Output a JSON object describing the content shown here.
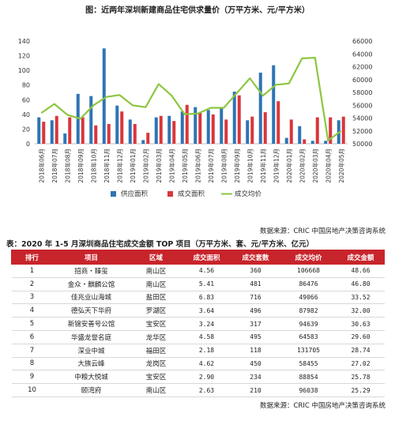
{
  "chart_data": {
    "type": "bar+line",
    "title": "图：近两年深圳新建商品住宅供求量价（万平方米、元/平方米）",
    "categories": [
      "2018年06月",
      "2018年07月",
      "2018年08月",
      "2018年09月",
      "2018年10月",
      "2018年11月",
      "2018年12月",
      "2019年01月",
      "2019年02月",
      "2019年03月",
      "2019年04月",
      "2019年05月",
      "2019年06月",
      "2019年07月",
      "2019年08月",
      "2019年09月",
      "2019年10月",
      "2019年11月",
      "2019年12月",
      "2020年01月",
      "2020年02月",
      "2020年03月",
      "2020年04月",
      "2020年05月"
    ],
    "left_axis": {
      "min": 0,
      "max": 140,
      "ticks": [
        0,
        20,
        40,
        60,
        80,
        100,
        120,
        140
      ]
    },
    "right_axis": {
      "min": 50000,
      "max": 66000,
      "ticks": [
        50000,
        52000,
        54000,
        56000,
        58000,
        60000,
        62000,
        64000,
        66000
      ]
    },
    "series": [
      {
        "name": "供应面积",
        "type": "bar",
        "axis": "left",
        "color": "#2e74b5",
        "values": [
          36,
          32,
          14,
          68,
          65,
          130,
          52,
          33,
          5,
          36,
          38,
          44,
          50,
          46,
          48,
          71,
          32,
          97,
          107,
          8,
          24,
          4,
          4,
          32
        ]
      },
      {
        "name": "成交面积",
        "type": "bar",
        "axis": "left",
        "color": "#d9363b",
        "values": [
          30,
          38,
          36,
          36,
          25,
          27,
          44,
          27,
          15,
          38,
          31,
          53,
          42,
          40,
          33,
          66,
          37,
          43,
          58,
          33,
          6,
          36,
          36,
          37
        ]
      },
      {
        "name": "成交均价",
        "type": "line",
        "axis": "right",
        "color": "#8dc63f",
        "values": [
          54800,
          56200,
          54500,
          53900,
          56000,
          57300,
          57600,
          56000,
          55700,
          59300,
          57500,
          54600,
          54700,
          55600,
          55600,
          57900,
          60200,
          57500,
          59200,
          59400,
          63300,
          63400,
          50500,
          52000
        ]
      }
    ],
    "legend": [
      "供应面积",
      "成交面积",
      "成交均价"
    ],
    "legend_position": "bottom",
    "grid": false
  },
  "source_note_chart": "数据来源：CRIC 中国房地产决策咨询系统",
  "table": {
    "title": "表：2020 年 1-5 月深圳商品住宅成交金额 TOP 项目（万平方米、套、元/平方米、亿元）",
    "headers": [
      "排行",
      "项目",
      "区域",
      "成交面积",
      "成交套数",
      "成交均价",
      "成交金额"
    ],
    "rows": [
      [
        "1",
        "招商・臻玺",
        "南山区",
        "4.56",
        "360",
        "106668",
        "48.66"
      ],
      [
        "2",
        "金众・麒麟公馆",
        "南山区",
        "5.41",
        "481",
        "86476",
        "46.80"
      ],
      [
        "3",
        "佳兆业山海城",
        "盐田区",
        "6.83",
        "716",
        "49066",
        "33.52"
      ],
      [
        "4",
        "德弘天下华府",
        "罗湖区",
        "3.64",
        "496",
        "87982",
        "32.00"
      ],
      [
        "5",
        "新锦安善号公馆",
        "宝安区",
        "3.24",
        "317",
        "94639",
        "30.63"
      ],
      [
        "6",
        "华盛龙誉名庭",
        "龙华区",
        "4.58",
        "495",
        "64583",
        "29.60"
      ],
      [
        "7",
        "深业中城",
        "福田区",
        "2.18",
        "118",
        "131705",
        "28.74"
      ],
      [
        "8",
        "大族云峰",
        "龙岗区",
        "4.62",
        "450",
        "58455",
        "27.02"
      ],
      [
        "9",
        "中粮大悦城",
        "宝安区",
        "2.90",
        "234",
        "88854",
        "25.78"
      ],
      [
        "10",
        "颐湾府",
        "南山区",
        "2.63",
        "210",
        "96038",
        "25.29"
      ]
    ]
  },
  "source_note_table": "数据来源：CRIC 中国房地产决策咨询系统"
}
